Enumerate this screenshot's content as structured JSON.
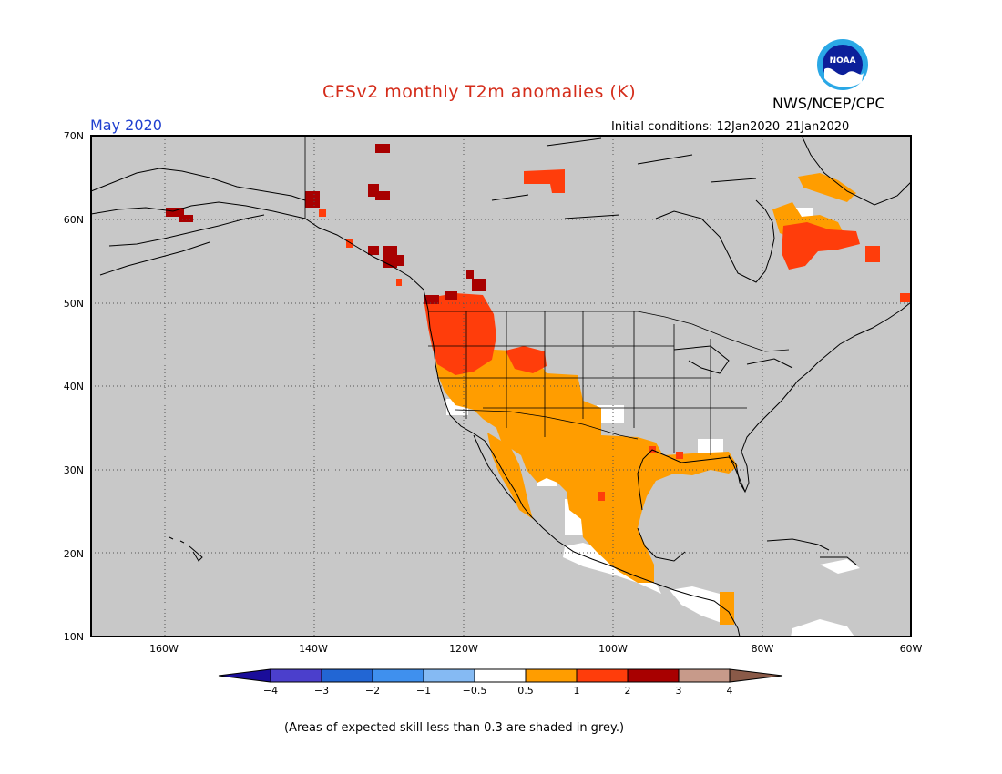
{
  "title": "CFSv2 monthly T2m anomalies (K)",
  "agency": "NWS/NCEP/CPC",
  "logo_text": "NOAA",
  "month": "May 2020",
  "initial_conditions": "Initial conditions: 12Jan2020–21Jan2020",
  "caption": "(Areas of expected skill less than 0.3 are shaded in grey.)",
  "map": {
    "lat_labels": [
      "70N",
      "60N",
      "50N",
      "40N",
      "30N",
      "20N",
      "10N"
    ],
    "lon_labels": [
      "160W",
      "140W",
      "120W",
      "100W",
      "80W",
      "60W"
    ],
    "lat_range": [
      10,
      70
    ],
    "lon_range": [
      -170,
      -60
    ],
    "no_skill_color": "#c8c8c8"
  },
  "colorbar": {
    "labels": [
      "−4",
      "−3",
      "−2",
      "−1",
      "−0.5",
      "0.5",
      "1",
      "2",
      "3",
      "4"
    ],
    "colors": [
      "#1a0d9a",
      "#4b3fcc",
      "#2266d4",
      "#3f90ee",
      "#85baf3",
      "#ffffff",
      "#ff9d00",
      "#ff3d0b",
      "#a80000",
      "#c79a8a",
      "#8a5a48"
    ]
  }
}
